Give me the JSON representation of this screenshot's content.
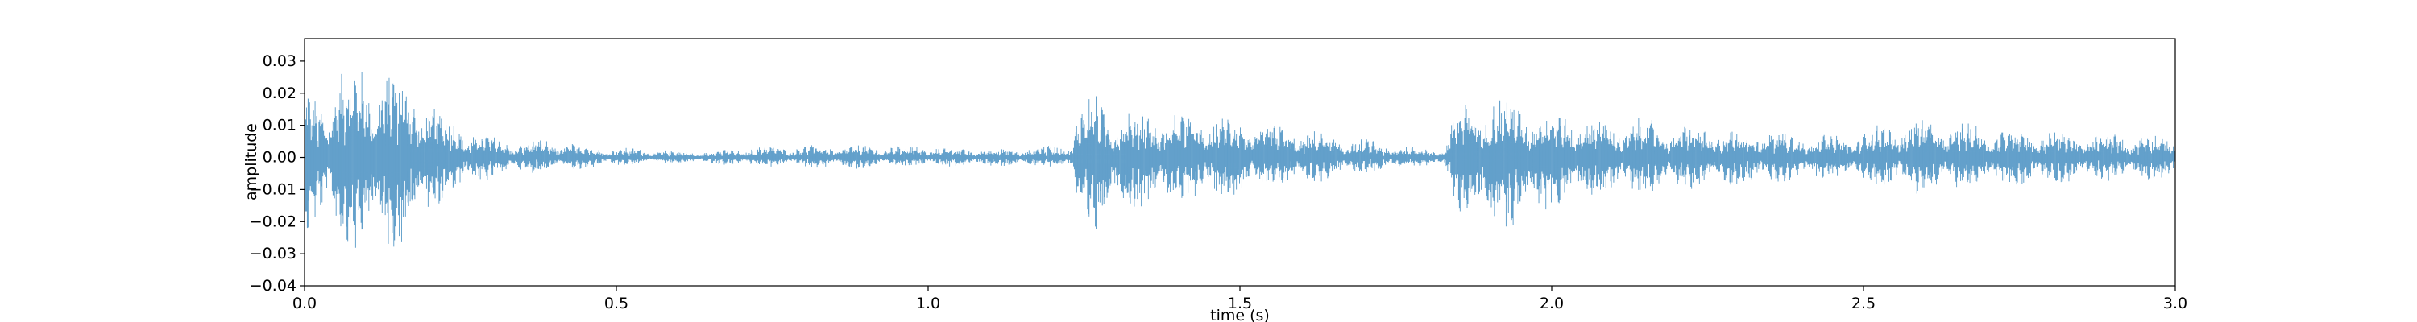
{
  "chart_data": {
    "type": "area",
    "title": "",
    "xlabel": "time (s)",
    "ylabel": "amplitude",
    "xlim": [
      0.0,
      3.0
    ],
    "ylim": [
      -0.04,
      0.037
    ],
    "x_ticks": [
      0.0,
      0.5,
      1.0,
      1.5,
      2.0,
      2.5,
      3.0
    ],
    "x_tick_labels": [
      "0.0",
      "0.5",
      "1.0",
      "1.5",
      "2.0",
      "2.5",
      "3.0"
    ],
    "y_ticks": [
      -0.04,
      -0.03,
      -0.02,
      -0.01,
      0.0,
      0.01,
      0.02,
      0.03
    ],
    "y_tick_labels": [
      "−0.04",
      "−0.03",
      "−0.02",
      "−0.01",
      "0.00",
      "0.01",
      "0.02",
      "0.03"
    ],
    "grid": false,
    "legend": "none",
    "series_color": "#1f77b4",
    "envelope": {
      "t": [
        0.0,
        0.02,
        0.05,
        0.08,
        0.11,
        0.14,
        0.18,
        0.22,
        0.26,
        0.3,
        0.35,
        0.4,
        0.45,
        0.5,
        0.55,
        0.6,
        0.65,
        0.7,
        0.75,
        0.8,
        0.85,
        0.9,
        0.95,
        1.0,
        1.05,
        1.1,
        1.15,
        1.2,
        1.23,
        1.24,
        1.26,
        1.28,
        1.3,
        1.33,
        1.36,
        1.4,
        1.45,
        1.5,
        1.55,
        1.6,
        1.65,
        1.7,
        1.75,
        1.8,
        1.83,
        1.84,
        1.87,
        1.9,
        1.93,
        1.96,
        2.0,
        2.05,
        2.1,
        2.15,
        2.2,
        2.25,
        2.3,
        2.35,
        2.4,
        2.45,
        2.5,
        2.55,
        2.6,
        2.65,
        2.7,
        2.75,
        2.8,
        2.85,
        2.9,
        2.95,
        3.0
      ],
      "upper": [
        0.024,
        0.02,
        0.028,
        0.031,
        0.032,
        0.03,
        0.024,
        0.015,
        0.01,
        0.007,
        0.005,
        0.006,
        0.004,
        0.003,
        0.003,
        0.002,
        0.002,
        0.003,
        0.004,
        0.004,
        0.004,
        0.004,
        0.004,
        0.004,
        0.003,
        0.003,
        0.003,
        0.004,
        0.005,
        0.016,
        0.021,
        0.019,
        0.016,
        0.015,
        0.016,
        0.015,
        0.014,
        0.013,
        0.011,
        0.01,
        0.007,
        0.006,
        0.004,
        0.003,
        0.003,
        0.014,
        0.019,
        0.021,
        0.02,
        0.018,
        0.016,
        0.014,
        0.012,
        0.013,
        0.011,
        0.01,
        0.009,
        0.01,
        0.008,
        0.007,
        0.009,
        0.012,
        0.013,
        0.012,
        0.01,
        0.01,
        0.009,
        0.008,
        0.008,
        0.008,
        0.007
      ],
      "lower": [
        -0.026,
        -0.022,
        -0.027,
        -0.032,
        -0.033,
        -0.031,
        -0.026,
        -0.016,
        -0.01,
        -0.007,
        -0.005,
        -0.005,
        -0.004,
        -0.003,
        -0.002,
        -0.002,
        -0.002,
        -0.003,
        -0.003,
        -0.003,
        -0.004,
        -0.004,
        -0.003,
        -0.003,
        -0.003,
        -0.003,
        -0.003,
        -0.003,
        -0.004,
        -0.018,
        -0.028,
        -0.024,
        -0.019,
        -0.017,
        -0.016,
        -0.015,
        -0.014,
        -0.012,
        -0.01,
        -0.009,
        -0.007,
        -0.005,
        -0.004,
        -0.003,
        -0.003,
        -0.014,
        -0.022,
        -0.026,
        -0.024,
        -0.02,
        -0.017,
        -0.014,
        -0.012,
        -0.012,
        -0.011,
        -0.01,
        -0.009,
        -0.009,
        -0.008,
        -0.007,
        -0.008,
        -0.011,
        -0.012,
        -0.011,
        -0.01,
        -0.01,
        -0.009,
        -0.008,
        -0.008,
        -0.007,
        -0.007
      ]
    }
  }
}
